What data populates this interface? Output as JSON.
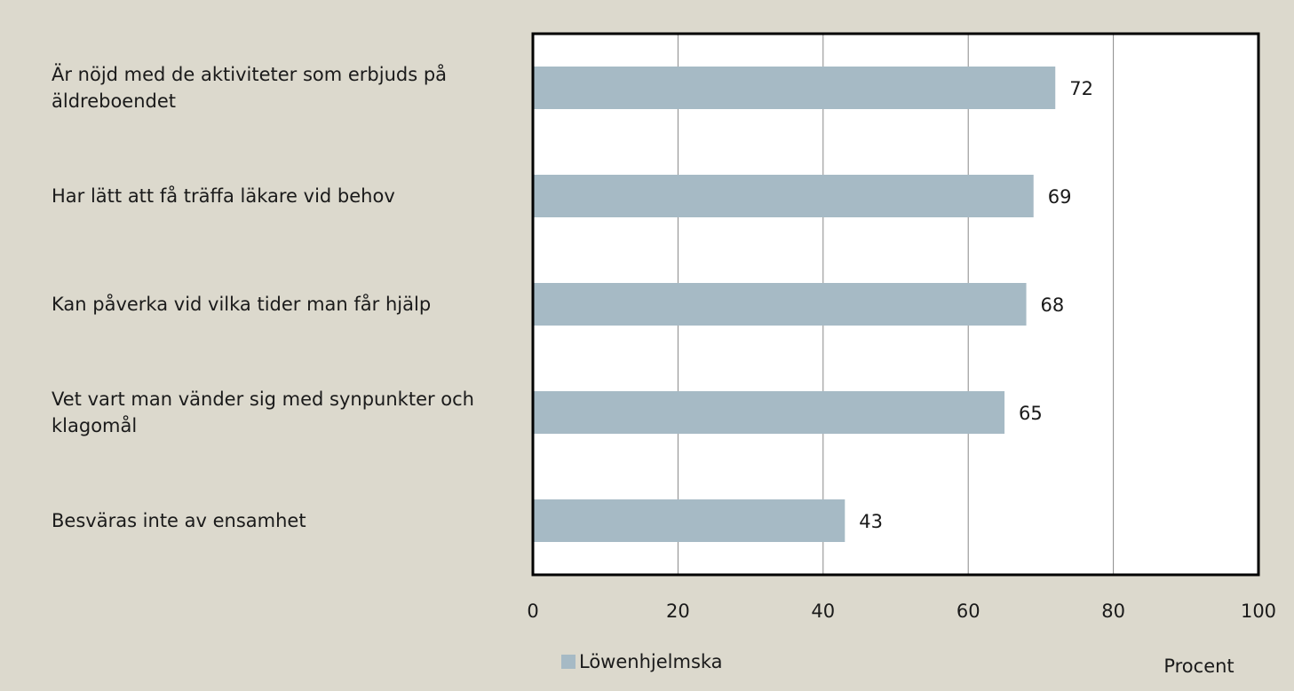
{
  "chart_data": {
    "type": "bar",
    "orientation": "horizontal",
    "categories": [
      "Är nöjd med de aktiviteter som erbjuds på äldreboendet",
      "Har lätt att få träffa läkare vid behov",
      "Kan påverka vid vilka tider man får hjälp",
      "Vet vart man vänder sig med synpunkter och klagomål",
      "Besväras inte av ensamhet"
    ],
    "series": [
      {
        "name": "Löwenhjelmska",
        "color": "#a6bac5",
        "values": [
          72,
          69,
          68,
          65,
          43
        ]
      }
    ],
    "xlim": [
      0,
      100
    ],
    "xticks": [
      0,
      20,
      40,
      60,
      80,
      100
    ],
    "x_label": "Procent",
    "grid": true
  }
}
